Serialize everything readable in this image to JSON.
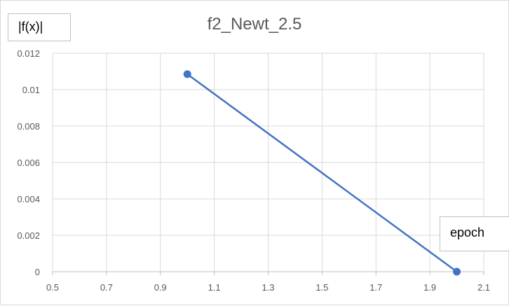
{
  "chart_data": {
    "type": "scatter",
    "title": "f2_Newt_2.5",
    "xlabel": "epoch",
    "ylabel": "|f(x)|",
    "x_ticks": [
      "0.5",
      "0.7",
      "0.9",
      "1.1",
      "1.3",
      "1.5",
      "1.7",
      "1.9",
      "2.1"
    ],
    "y_ticks": [
      "0",
      "0.002",
      "0.004",
      "0.006",
      "0.008",
      "0.01",
      "0.012"
    ],
    "xlim": [
      0.5,
      2.1
    ],
    "ylim": [
      0,
      0.012
    ],
    "grid": true,
    "series": [
      {
        "x": [
          1,
          2
        ],
        "y": [
          0.01085,
          0
        ],
        "color": "#4472c4",
        "style": "line-with-markers"
      }
    ]
  }
}
